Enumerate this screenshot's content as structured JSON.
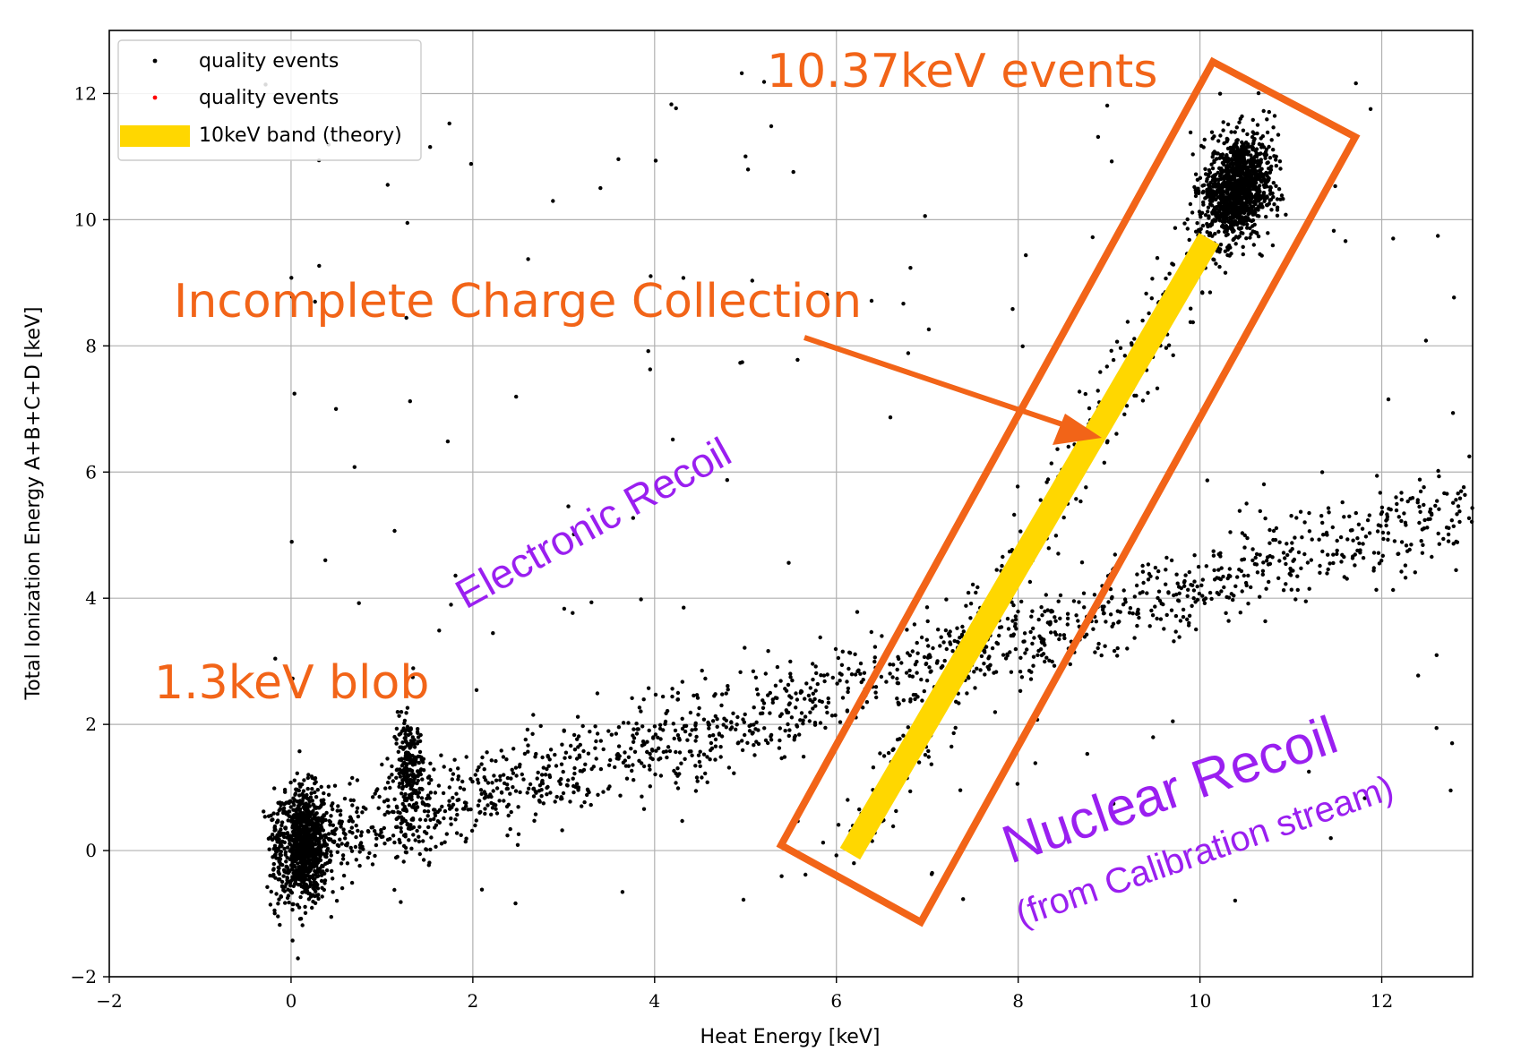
{
  "chart_data": {
    "type": "scatter",
    "xlabel": "Heat Energy [keV]",
    "ylabel": "Total Ionization Energy  A+B+C+D [keV]",
    "xlim": [
      -2,
      13
    ],
    "ylim": [
      -2,
      13
    ],
    "x_ticks": [
      -2,
      0,
      2,
      4,
      6,
      8,
      10,
      12
    ],
    "y_ticks": [
      -2,
      0,
      2,
      4,
      6,
      8,
      10,
      12
    ],
    "x_tick_labels": [
      "−2",
      "0",
      "2",
      "4",
      "6",
      "8",
      "10",
      "12"
    ],
    "y_tick_labels": [
      "−2",
      "0",
      "2",
      "4",
      "6",
      "8",
      "10",
      "12"
    ],
    "grid": true,
    "legend_position": "top-left",
    "legend": [
      {
        "label": "quality events",
        "marker": "dot",
        "color": "#000000"
      },
      {
        "label": "quality events",
        "marker": "dot",
        "color": "#ff0000"
      },
      {
        "label": "10keV band (theory)",
        "marker": "band",
        "color": "#ffd700"
      }
    ],
    "band": {
      "name": "10keV band (theory)",
      "color": "#ffd700",
      "x": [
        6.15,
        10.1
      ],
      "y": [
        -0.05,
        9.7
      ]
    },
    "event_populations": [
      {
        "name": "blob near 0 keV",
        "cx": 0.15,
        "cy": 0.1,
        "count": 900
      },
      {
        "name": "1.3keV blob",
        "cx": 1.3,
        "cy": 1.3,
        "count": 220
      },
      {
        "name": "10.37keV events",
        "cx": 10.4,
        "cy": 10.5,
        "count": 1200
      },
      {
        "name": "nuclear recoil band",
        "x_range": [
          0.4,
          13
        ],
        "count": 1500
      },
      {
        "name": "electron recoil line",
        "x_range": [
          6,
          10
        ],
        "count": 350
      },
      {
        "name": "scattered background",
        "count": 160
      }
    ],
    "annotations": [
      {
        "text": "10.37keV events",
        "color": "#f26418"
      },
      {
        "text": "Incomplete Charge Collection",
        "color": "#f26418"
      },
      {
        "text": "1.3keV blob",
        "color": "#f26418"
      },
      {
        "text": "Electronic Recoil",
        "color": "#9a1ff0"
      },
      {
        "text": "Nuclear Recoil",
        "color": "#9a1ff0"
      },
      {
        "text": "(from Calibration stream)",
        "color": "#9a1ff0"
      }
    ]
  }
}
